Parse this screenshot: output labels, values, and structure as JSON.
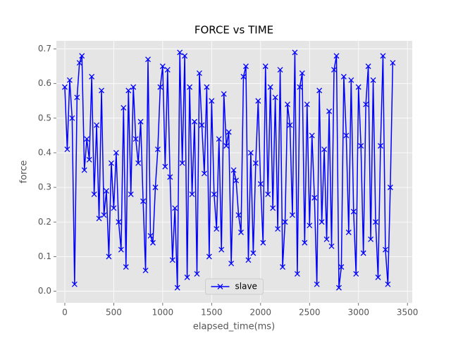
{
  "chart_data": {
    "type": "line",
    "title": "FORCE vs TIME",
    "x_label": "elapsed_time(ms)",
    "y_label": "force",
    "x": [
      0,
      25,
      50,
      75,
      100,
      125,
      150,
      175,
      200,
      225,
      250,
      275,
      300,
      325,
      350,
      375,
      400,
      425,
      450,
      475,
      500,
      525,
      550,
      575,
      600,
      625,
      650,
      675,
      700,
      725,
      750,
      775,
      800,
      825,
      850,
      875,
      900,
      925,
      950,
      975,
      1000,
      1025,
      1050,
      1075,
      1100,
      1125,
      1150,
      1175,
      1200,
      1225,
      1250,
      1275,
      1300,
      1325,
      1350,
      1375,
      1400,
      1425,
      1450,
      1475,
      1500,
      1525,
      1550,
      1575,
      1600,
      1625,
      1650,
      1675,
      1700,
      1725,
      1750,
      1775,
      1800,
      1825,
      1850,
      1875,
      1900,
      1925,
      1950,
      1975,
      2000,
      2025,
      2050,
      2075,
      2100,
      2125,
      2150,
      2175,
      2200,
      2225,
      2250,
      2275,
      2300,
      2325,
      2350,
      2375,
      2400,
      2425,
      2450,
      2475,
      2500,
      2525,
      2550,
      2575,
      2600,
      2625,
      2650,
      2675,
      2700,
      2725,
      2750,
      2775,
      2800,
      2825,
      2850,
      2875,
      2900,
      2925,
      2950,
      2975,
      3000,
      3025,
      3050,
      3075,
      3100,
      3125,
      3150,
      3175,
      3200,
      3225,
      3250,
      3275,
      3300,
      3325,
      3350
    ],
    "series": [
      {
        "name": "slave",
        "color": "#0000ff",
        "values": [
          0.59,
          0.41,
          0.61,
          0.5,
          0.02,
          0.56,
          0.66,
          0.68,
          0.35,
          0.44,
          0.38,
          0.62,
          0.28,
          0.48,
          0.21,
          0.58,
          0.22,
          0.29,
          0.1,
          0.37,
          0.24,
          0.4,
          0.2,
          0.12,
          0.53,
          0.07,
          0.58,
          0.28,
          0.59,
          0.44,
          0.37,
          0.49,
          0.26,
          0.06,
          0.67,
          0.16,
          0.14,
          0.3,
          0.41,
          0.59,
          0.65,
          0.36,
          0.64,
          0.33,
          0.09,
          0.24,
          0.01,
          0.69,
          0.37,
          0.68,
          0.04,
          0.59,
          0.28,
          0.49,
          0.05,
          0.63,
          0.48,
          0.34,
          0.59,
          0.1,
          0.55,
          0.28,
          0.18,
          0.44,
          0.12,
          0.57,
          0.42,
          0.46,
          0.08,
          0.35,
          0.32,
          0.22,
          0.17,
          0.62,
          0.65,
          0.09,
          0.4,
          0.11,
          0.37,
          0.55,
          0.31,
          0.14,
          0.65,
          0.28,
          0.59,
          0.24,
          0.56,
          0.18,
          0.64,
          0.07,
          0.2,
          0.54,
          0.48,
          0.22,
          0.69,
          0.05,
          0.59,
          0.63,
          0.14,
          0.54,
          0.19,
          0.45,
          0.27,
          0.02,
          0.58,
          0.2,
          0.41,
          0.15,
          0.52,
          0.13,
          0.64,
          0.68,
          0.01,
          0.07,
          0.62,
          0.45,
          0.17,
          0.61,
          0.23,
          0.05,
          0.59,
          0.42,
          0.11,
          0.54,
          0.65,
          0.15,
          0.61,
          0.2,
          0.04,
          0.42,
          0.68,
          0.12,
          0.02,
          0.3,
          0.66
        ]
      }
    ],
    "xlim": [
      -86,
      3549
    ],
    "xticks": [
      0,
      500,
      1000,
      1500,
      2000,
      2500,
      3000,
      3500
    ],
    "ylim": [
      -0.0335,
      0.7235
    ],
    "yticks": [
      {
        "value": 0,
        "label": "0.0"
      },
      0.1,
      0.2,
      0.3,
      0.4,
      0.5,
      0.6,
      0.7
    ],
    "grid": true,
    "legend": "lower center"
  }
}
